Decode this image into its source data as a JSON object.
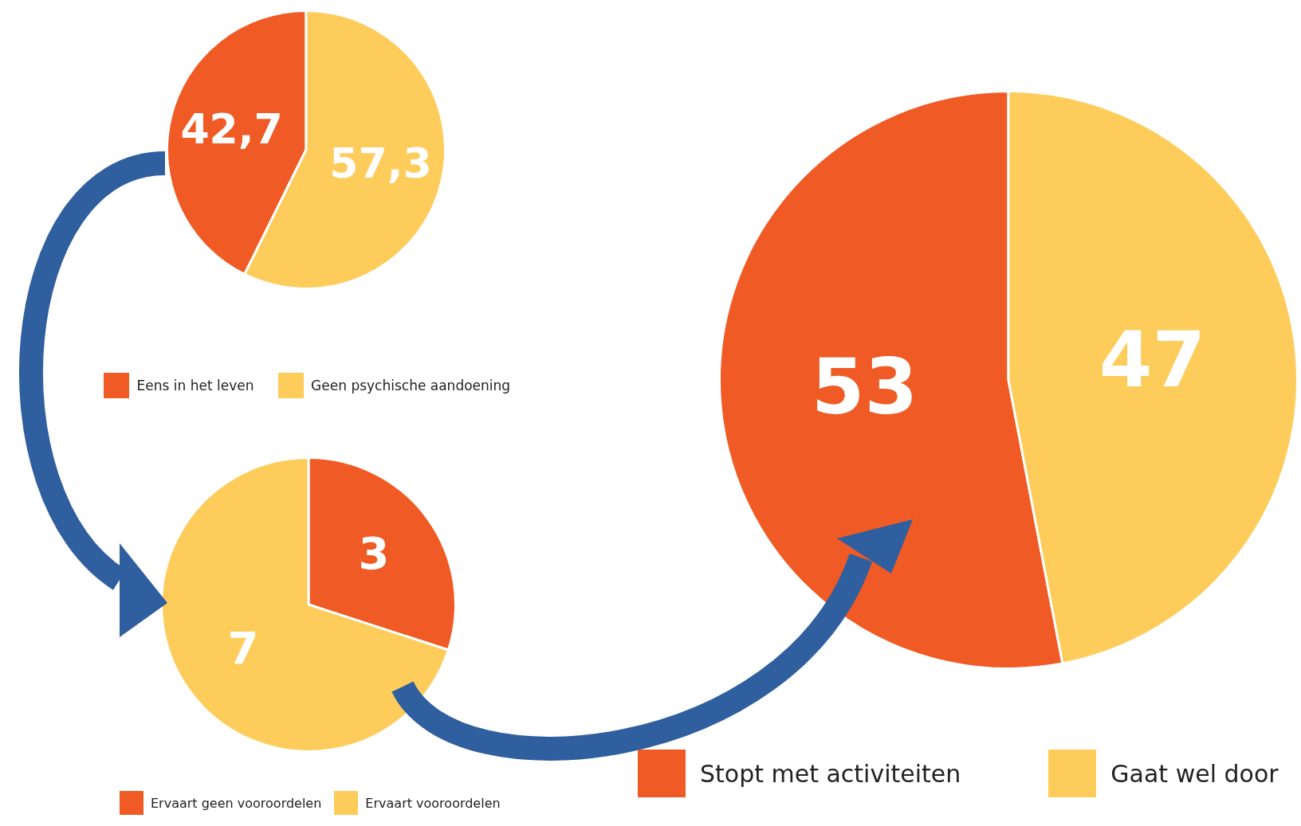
{
  "chart_data": [
    {
      "type": "pie",
      "categories": [
        "Eens in het leven",
        "Geen psychische aandoening"
      ],
      "values": [
        42.7,
        57.3
      ],
      "colors": [
        "#f05a24",
        "#fdcc5b"
      ],
      "value_labels": [
        "42,7",
        "57,3"
      ],
      "legend": "bottom"
    },
    {
      "type": "pie",
      "categories": [
        "Ervaart geen vooroordelen",
        "Ervaart vooroordelen"
      ],
      "values": [
        3,
        7
      ],
      "colors": [
        "#f05a24",
        "#fdcc5b"
      ],
      "value_labels": [
        "3",
        "7"
      ],
      "legend": "bottom"
    },
    {
      "type": "pie",
      "categories": [
        "Stopt met activiteiten",
        "Gaat wel door"
      ],
      "values": [
        53,
        47
      ],
      "colors": [
        "#f05a24",
        "#fdcc5b"
      ],
      "value_labels": [
        "53",
        "47"
      ],
      "legend": "bottom"
    }
  ]
}
